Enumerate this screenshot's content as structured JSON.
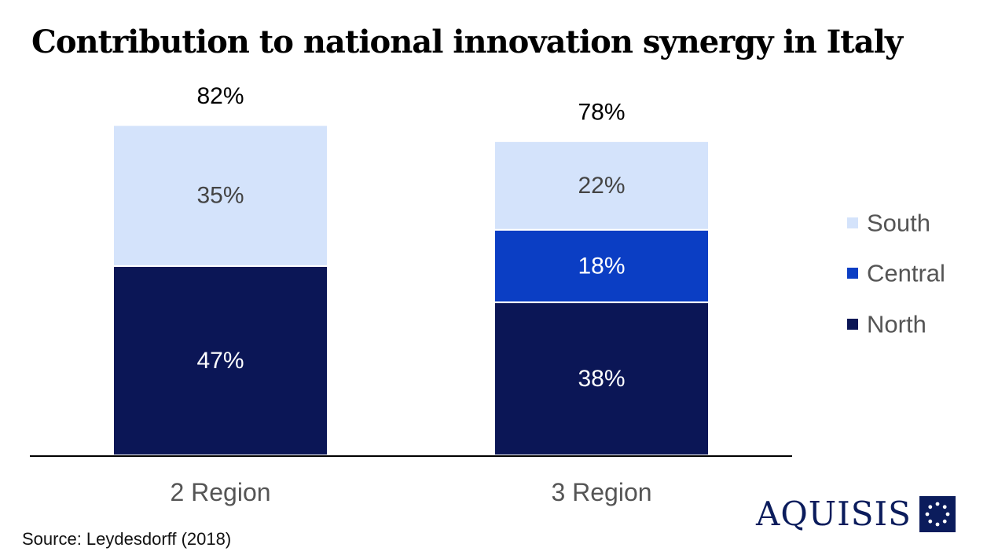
{
  "title": "Contribution to national innovation synergy in Italy",
  "source": "Source: Leydesdorff (2018)",
  "logo": {
    "text": "AQUISIS"
  },
  "colors": {
    "south": "#d4e3fb",
    "central": "#0b3ec4",
    "north": "#0b1656",
    "axis": "#000000",
    "label_dark": "#444444",
    "label_light": "#ffffff"
  },
  "chart_data": {
    "type": "bar",
    "stacked": true,
    "categories": [
      "2 Region",
      "3 Region"
    ],
    "series": [
      {
        "name": "North",
        "values": [
          47,
          38
        ],
        "labels": [
          "47%",
          "38%"
        ]
      },
      {
        "name": "Central",
        "values": [
          0,
          18
        ],
        "labels": [
          "",
          "18%"
        ]
      },
      {
        "name": "South",
        "values": [
          35,
          22
        ],
        "labels": [
          "35%",
          "22%"
        ]
      }
    ],
    "totals": [
      82,
      78
    ],
    "total_labels": [
      "82%",
      "78%"
    ],
    "legend": [
      "South",
      "Central",
      "North"
    ],
    "legend_position": "right",
    "grid": false,
    "ylim": [
      0,
      82
    ]
  }
}
